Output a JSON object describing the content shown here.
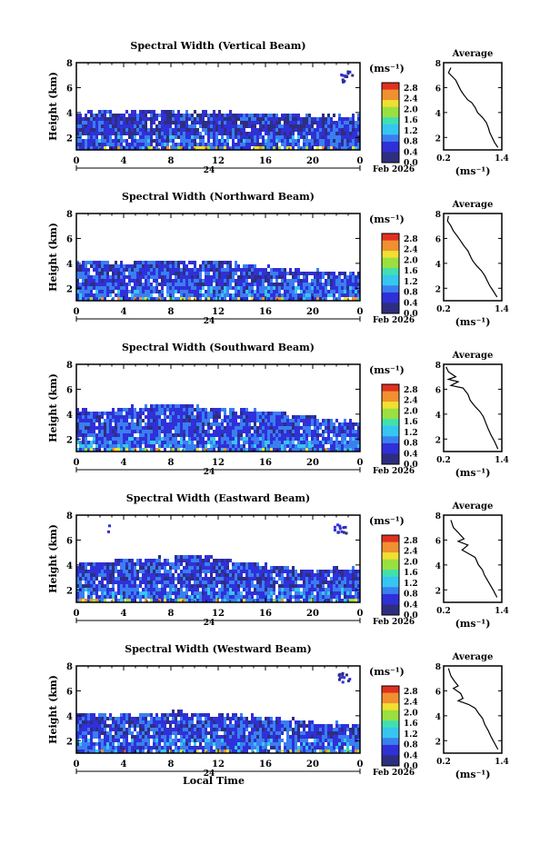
{
  "chart_data": {
    "type": "heatmap",
    "x_axis_label": "Local Time",
    "date_label": "24",
    "month_label": "Feb 2026",
    "y_axis_label": "Height (km)",
    "time_ticks": [
      "0",
      "4",
      "8",
      "12",
      "16",
      "20",
      "0"
    ],
    "height_ticks": [
      "2",
      "4",
      "6",
      "8"
    ],
    "height_range_km": [
      1,
      8
    ],
    "time_range_h": [
      0,
      24
    ],
    "colorbar": {
      "unit": "(ms⁻¹)",
      "ticks": [
        "2.8",
        "2.4",
        "2.0",
        "1.6",
        "1.2",
        "0.8",
        "0.4",
        "0.0"
      ],
      "range": [
        0.0,
        3.0
      ],
      "colorscale": [
        "#2e2e80",
        "#3030d8",
        "#3a7ff0",
        "#36c6f0",
        "#40e0b0",
        "#9ae040",
        "#f0e030",
        "#f09030",
        "#e03020"
      ]
    },
    "profile_panel": {
      "title": "Average",
      "x_ticks": [
        "0.2",
        "1.4"
      ],
      "x_unit": "(ms⁻¹)",
      "y_ticks": [
        "2",
        "4",
        "6",
        "8"
      ],
      "xlim": [
        0.2,
        1.4
      ],
      "ylim": [
        1,
        8
      ]
    },
    "panels": [
      {
        "title": "Spectral Width (Vertical Beam)",
        "mean_width": 0.45,
        "top_km": [
          4.0,
          4.2,
          4.1,
          4.3,
          4.2,
          4.1,
          4.1,
          4.0,
          4.0,
          3.9,
          3.9,
          3.8,
          3.8
        ],
        "blobs": [
          {
            "t": 22.8,
            "h": 7.4,
            "label": "upper"
          }
        ],
        "profile": [
          [
            0.35,
            7.6
          ],
          [
            0.3,
            7.2
          ],
          [
            0.4,
            6.8
          ],
          [
            0.45,
            6.6
          ],
          [
            0.5,
            6.2
          ],
          [
            0.55,
            5.8
          ],
          [
            0.62,
            5.4
          ],
          [
            0.7,
            5.0
          ],
          [
            0.78,
            4.8
          ],
          [
            0.85,
            4.4
          ],
          [
            0.9,
            4.0
          ],
          [
            1.0,
            3.6
          ],
          [
            1.08,
            3.2
          ],
          [
            1.12,
            2.8
          ],
          [
            1.15,
            2.4
          ],
          [
            1.2,
            2.0
          ],
          [
            1.25,
            1.6
          ],
          [
            1.32,
            1.2
          ]
        ]
      },
      {
        "title": "Spectral Width (Northward Beam)",
        "mean_width": 0.55,
        "top_km": [
          4.2,
          4.3,
          4.0,
          4.4,
          4.3,
          4.2,
          4.3,
          4.0,
          3.8,
          3.6,
          3.5,
          3.4,
          3.3
        ],
        "blobs": [],
        "profile": [
          [
            0.3,
            7.8
          ],
          [
            0.28,
            7.4
          ],
          [
            0.35,
            7.0
          ],
          [
            0.4,
            6.6
          ],
          [
            0.48,
            6.2
          ],
          [
            0.55,
            5.8
          ],
          [
            0.62,
            5.4
          ],
          [
            0.7,
            5.0
          ],
          [
            0.76,
            4.5
          ],
          [
            0.8,
            4.2
          ],
          [
            0.88,
            3.8
          ],
          [
            0.98,
            3.4
          ],
          [
            1.05,
            3.0
          ],
          [
            1.1,
            2.6
          ],
          [
            1.15,
            2.2
          ],
          [
            1.22,
            1.8
          ],
          [
            1.3,
            1.3
          ]
        ]
      },
      {
        "title": "Spectral Width (Southward Beam)",
        "mean_width": 0.6,
        "top_km": [
          4.4,
          4.3,
          4.6,
          4.7,
          4.9,
          4.8,
          4.6,
          4.4,
          4.3,
          4.1,
          3.9,
          3.6,
          3.4
        ],
        "blobs": [],
        "profile": [
          [
            0.25,
            7.8
          ],
          [
            0.3,
            7.4
          ],
          [
            0.45,
            7.0
          ],
          [
            0.3,
            6.8
          ],
          [
            0.5,
            6.6
          ],
          [
            0.35,
            6.3
          ],
          [
            0.6,
            6.1
          ],
          [
            0.7,
            5.6
          ],
          [
            0.75,
            5.1
          ],
          [
            0.85,
            4.6
          ],
          [
            0.95,
            4.2
          ],
          [
            1.02,
            3.8
          ],
          [
            1.08,
            3.2
          ],
          [
            1.12,
            2.8
          ],
          [
            1.18,
            2.3
          ],
          [
            1.25,
            1.8
          ],
          [
            1.32,
            1.2
          ]
        ]
      },
      {
        "title": "Spectral Width (Eastward Beam)",
        "mean_width": 0.55,
        "top_km": [
          4.2,
          4.4,
          4.5,
          4.6,
          4.7,
          4.9,
          4.6,
          4.3,
          4.1,
          3.9,
          3.6,
          3.8,
          3.7
        ],
        "blobs": [
          {
            "t": 22.3,
            "h": 7.5,
            "label": "upper"
          },
          {
            "t": 3.1,
            "h": 7.5,
            "label": "dot"
          }
        ],
        "profile": [
          [
            0.35,
            7.6
          ],
          [
            0.4,
            7.0
          ],
          [
            0.5,
            6.6
          ],
          [
            0.62,
            6.1
          ],
          [
            0.5,
            5.9
          ],
          [
            0.7,
            5.6
          ],
          [
            0.58,
            5.2
          ],
          [
            0.72,
            4.9
          ],
          [
            0.85,
            4.6
          ],
          [
            0.92,
            4.0
          ],
          [
            1.0,
            3.6
          ],
          [
            1.04,
            3.2
          ],
          [
            1.1,
            2.8
          ],
          [
            1.16,
            2.4
          ],
          [
            1.22,
            2.0
          ],
          [
            1.3,
            1.4
          ]
        ]
      },
      {
        "title": "Spectral Width (Westward Beam)",
        "mean_width": 0.55,
        "top_km": [
          4.3,
          4.2,
          4.1,
          4.2,
          4.4,
          4.3,
          4.2,
          4.1,
          4.0,
          3.8,
          3.6,
          3.5,
          3.3
        ],
        "blobs": [
          {
            "t": 22.5,
            "h": 7.6,
            "label": "upper"
          }
        ],
        "profile": [
          [
            0.3,
            7.8
          ],
          [
            0.35,
            7.2
          ],
          [
            0.42,
            6.8
          ],
          [
            0.5,
            6.4
          ],
          [
            0.4,
            6.2
          ],
          [
            0.55,
            5.8
          ],
          [
            0.6,
            5.4
          ],
          [
            0.5,
            5.2
          ],
          [
            0.72,
            4.9
          ],
          [
            0.85,
            4.6
          ],
          [
            0.92,
            4.2
          ],
          [
            1.0,
            3.8
          ],
          [
            1.05,
            3.3
          ],
          [
            1.12,
            2.8
          ],
          [
            1.18,
            2.3
          ],
          [
            1.25,
            1.8
          ],
          [
            1.32,
            1.3
          ]
        ]
      }
    ]
  }
}
